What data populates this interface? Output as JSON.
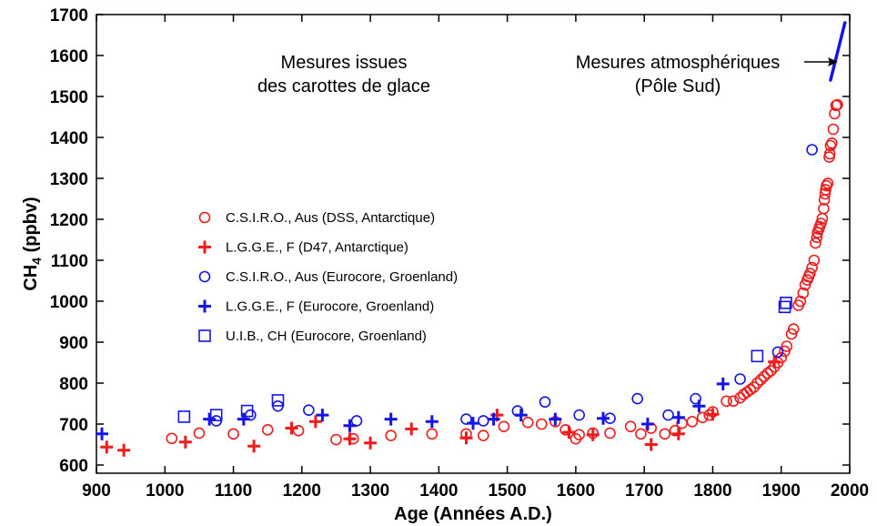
{
  "chart_data": {
    "type": "scatter",
    "xlabel": "Age (Années A.D.)",
    "ylabel_main": "CH",
    "ylabel_sub": "4",
    "ylabel_unit": " (ppbv)",
    "xlim": [
      900,
      2000
    ],
    "ylim": [
      580,
      1700
    ],
    "xticks": [
      900,
      1000,
      1100,
      1200,
      1300,
      1400,
      1500,
      1600,
      1700,
      1800,
      1900,
      2000
    ],
    "yticks": [
      600,
      700,
      800,
      900,
      1000,
      1100,
      1200,
      1300,
      1400,
      1500,
      1600,
      1700
    ],
    "grid": false,
    "legend_position": "middle-left",
    "annotations": {
      "ice_line1": "Mesures issues",
      "ice_line2": "des carottes de glace",
      "atmo_line1": "Mesures atmosphériques",
      "atmo_line2": "(Pôle Sud)"
    },
    "colors": {
      "red": "#ee1c1c",
      "blue": "#1414e6"
    },
    "series": [
      {
        "name": "C.S.I.R.O., Aus (DSS, Antarctique)",
        "marker": "circle",
        "color": "#ee1c1c",
        "points": [
          [
            1010,
            665
          ],
          [
            1050,
            678
          ],
          [
            1100,
            676
          ],
          [
            1150,
            686
          ],
          [
            1195,
            684
          ],
          [
            1250,
            662
          ],
          [
            1275,
            664
          ],
          [
            1330,
            672
          ],
          [
            1390,
            676
          ],
          [
            1440,
            676
          ],
          [
            1465,
            672
          ],
          [
            1495,
            694
          ],
          [
            1530,
            704
          ],
          [
            1550,
            700
          ],
          [
            1570,
            706
          ],
          [
            1585,
            686
          ],
          [
            1600,
            664
          ],
          [
            1605,
            674
          ],
          [
            1625,
            678
          ],
          [
            1650,
            678
          ],
          [
            1680,
            694
          ],
          [
            1695,
            676
          ],
          [
            1710,
            690
          ],
          [
            1730,
            676
          ],
          [
            1745,
            684
          ],
          [
            1755,
            702
          ],
          [
            1770,
            706
          ],
          [
            1785,
            716
          ],
          [
            1795,
            722
          ],
          [
            1800,
            730
          ],
          [
            1820,
            756
          ],
          [
            1830,
            756
          ],
          [
            1840,
            764
          ],
          [
            1845,
            772
          ],
          [
            1850,
            778
          ],
          [
            1855,
            784
          ],
          [
            1860,
            790
          ],
          [
            1865,
            800
          ],
          [
            1870,
            808
          ],
          [
            1875,
            816
          ],
          [
            1880,
            824
          ],
          [
            1885,
            830
          ],
          [
            1890,
            840
          ],
          [
            1895,
            850
          ],
          [
            1900,
            862
          ],
          [
            1905,
            878
          ],
          [
            1908,
            890
          ],
          [
            1915,
            920
          ],
          [
            1918,
            932
          ],
          [
            1925,
            990
          ],
          [
            1928,
            1000
          ],
          [
            1932,
            1020
          ],
          [
            1935,
            1040
          ],
          [
            1938,
            1052
          ],
          [
            1940,
            1060
          ],
          [
            1942,
            1068
          ],
          [
            1945,
            1082
          ],
          [
            1948,
            1100
          ],
          [
            1950,
            1142
          ],
          [
            1952,
            1156
          ],
          [
            1953,
            1168
          ],
          [
            1955,
            1176
          ],
          [
            1956,
            1182
          ],
          [
            1958,
            1190
          ],
          [
            1960,
            1202
          ],
          [
            1962,
            1226
          ],
          [
            1963,
            1248
          ],
          [
            1964,
            1262
          ],
          [
            1965,
            1272
          ],
          [
            1966,
            1282
          ],
          [
            1968,
            1288
          ],
          [
            1970,
            1352
          ],
          [
            1971,
            1360
          ],
          [
            1972,
            1380
          ],
          [
            1974,
            1386
          ],
          [
            1976,
            1420
          ],
          [
            1978,
            1458
          ],
          [
            1980,
            1478
          ],
          [
            1982,
            1480
          ]
        ]
      },
      {
        "name": "L.G.G.E., F (D47, Antarctique)",
        "marker": "plus",
        "color": "#ee1c1c",
        "points": [
          [
            915,
            644
          ],
          [
            940,
            636
          ],
          [
            1030,
            656
          ],
          [
            1130,
            646
          ],
          [
            1185,
            690
          ],
          [
            1220,
            706
          ],
          [
            1270,
            664
          ],
          [
            1300,
            654
          ],
          [
            1360,
            688
          ],
          [
            1440,
            666
          ],
          [
            1485,
            722
          ],
          [
            1590,
            680
          ],
          [
            1625,
            674
          ],
          [
            1710,
            650
          ],
          [
            1750,
            676
          ],
          [
            1800,
            724
          ],
          [
            1890,
            852
          ]
        ]
      },
      {
        "name": "C.S.I.R.O., Aus (Eurocore, Groenland)",
        "marker": "circle",
        "color": "#1414e6",
        "points": [
          [
            1075,
            708
          ],
          [
            1125,
            722
          ],
          [
            1165,
            744
          ],
          [
            1210,
            734
          ],
          [
            1280,
            708
          ],
          [
            1440,
            712
          ],
          [
            1465,
            708
          ],
          [
            1515,
            732
          ],
          [
            1555,
            754
          ],
          [
            1605,
            722
          ],
          [
            1650,
            714
          ],
          [
            1690,
            762
          ],
          [
            1735,
            722
          ],
          [
            1775,
            762
          ],
          [
            1840,
            810
          ],
          [
            1895,
            876
          ],
          [
            1945,
            1370
          ]
        ]
      },
      {
        "name": "L.G.G.E., F (Eurocore, Groenland)",
        "marker": "plus",
        "color": "#1414e6",
        "points": [
          [
            908,
            676
          ],
          [
            1065,
            712
          ],
          [
            1115,
            712
          ],
          [
            1230,
            722
          ],
          [
            1270,
            696
          ],
          [
            1330,
            712
          ],
          [
            1390,
            706
          ],
          [
            1450,
            702
          ],
          [
            1480,
            712
          ],
          [
            1520,
            722
          ],
          [
            1570,
            712
          ],
          [
            1640,
            714
          ],
          [
            1705,
            700
          ],
          [
            1750,
            716
          ],
          [
            1780,
            744
          ],
          [
            1815,
            798
          ]
        ]
      },
      {
        "name": "U.I.B., CH (Eurocore, Groenland)",
        "marker": "square",
        "color": "#1414e6",
        "points": [
          [
            1028,
            718
          ],
          [
            1075,
            722
          ],
          [
            1120,
            732
          ],
          [
            1165,
            758
          ],
          [
            1865,
            866
          ],
          [
            1905,
            986
          ],
          [
            1907,
            996
          ]
        ]
      },
      {
        "name": "",
        "marker": "line",
        "color": "#1414e6",
        "points": [
          [
            1972,
            1540
          ],
          [
            1975,
            1560
          ],
          [
            1978,
            1580
          ],
          [
            1981,
            1600
          ],
          [
            1984,
            1620
          ],
          [
            1987,
            1640
          ],
          [
            1990,
            1660
          ],
          [
            1993,
            1680
          ]
        ]
      }
    ]
  }
}
